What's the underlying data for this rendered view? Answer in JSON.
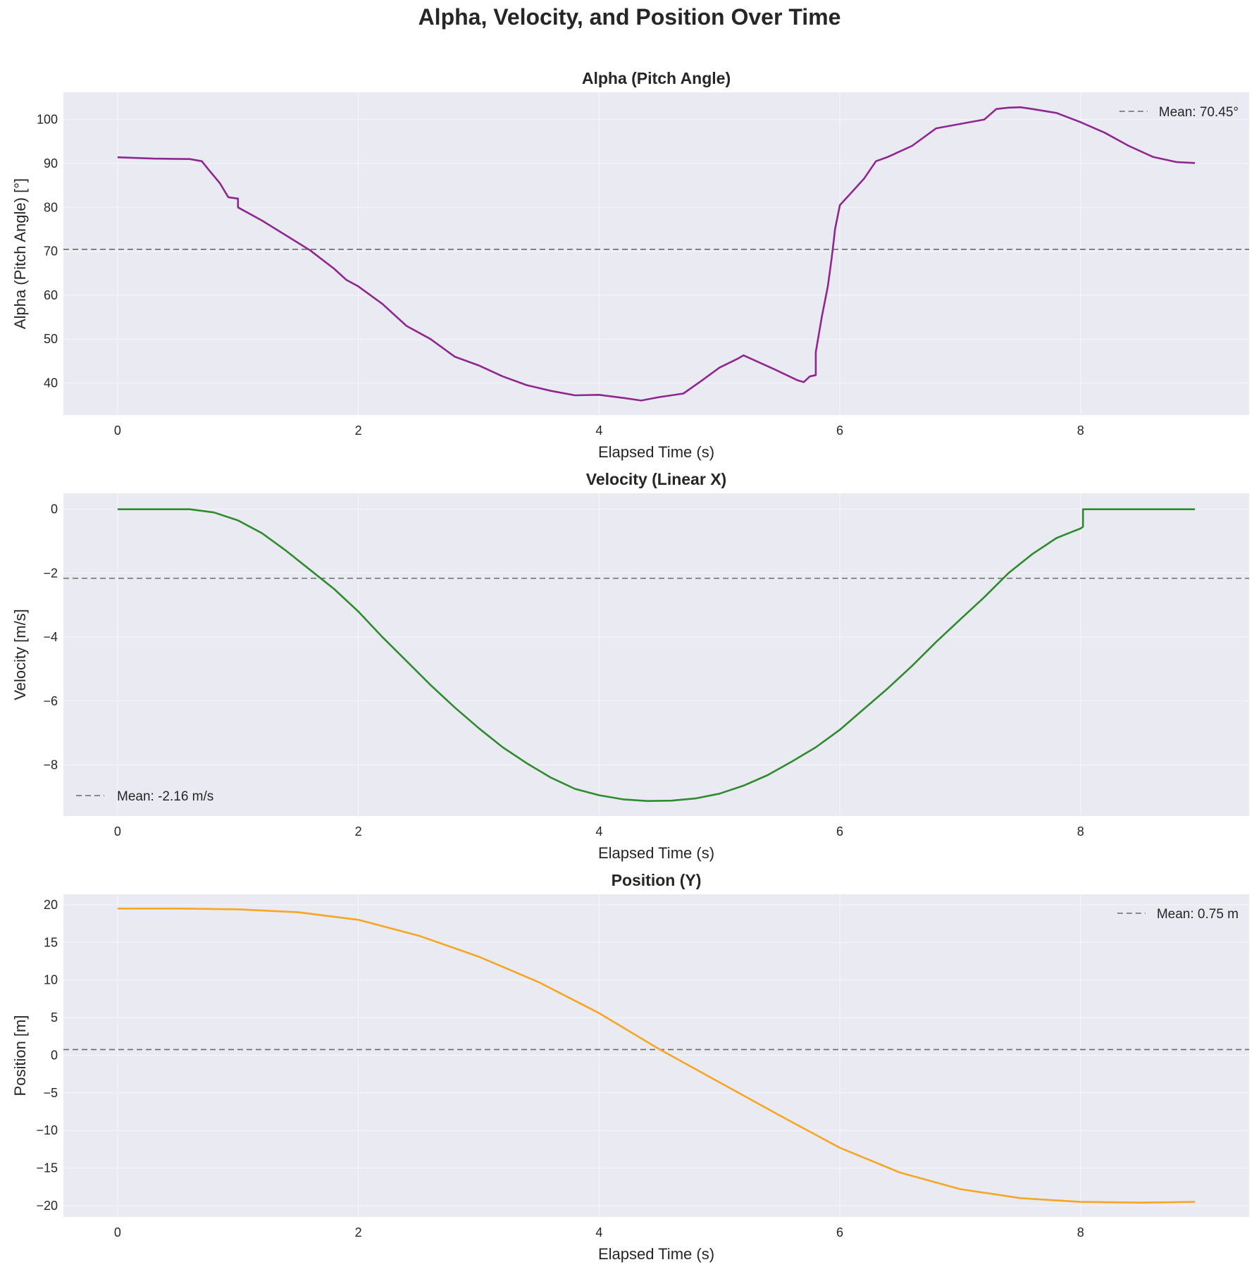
{
  "figure": {
    "title": "Alpha, Velocity, and Position Over Time"
  },
  "chart_data": [
    {
      "type": "line",
      "title": "Alpha (Pitch Angle)",
      "xlabel": "Elapsed Time (s)",
      "ylabel": "Alpha (Pitch Angle) [°]",
      "xlim": [
        -0.45,
        9.4
      ],
      "ylim": [
        32.7,
        106.2
      ],
      "xticks": [
        0,
        2,
        4,
        6,
        8
      ],
      "yticks": [
        40,
        50,
        60,
        70,
        80,
        90,
        100
      ],
      "grid": true,
      "legend_position": "upper right",
      "color": "#8e2790",
      "mean": {
        "value": 70.45,
        "label": "Mean: 70.45°"
      },
      "series": [
        {
          "x": [
            0,
            0.3,
            0.6,
            0.7,
            0.75,
            0.85,
            0.92,
            1.0,
            1.0,
            1.2,
            1.4,
            1.6,
            1.8,
            1.9,
            2.0,
            2.2,
            2.4,
            2.6,
            2.8,
            3.0,
            3.2,
            3.4,
            3.6,
            3.8,
            4.0,
            4.2,
            4.35,
            4.5,
            4.7,
            4.85,
            5.0,
            5.15,
            5.2,
            5.45,
            5.65,
            5.7,
            5.75,
            5.8,
            5.8,
            5.85,
            5.9,
            5.93,
            5.95,
            5.96,
            6.0,
            6.1,
            6.2,
            6.3,
            6.4,
            6.6,
            6.8,
            7.0,
            7.2,
            7.3,
            7.4,
            7.5,
            7.6,
            7.8,
            8.0,
            8.2,
            8.4,
            8.6,
            8.8,
            8.95
          ],
          "y": [
            91.4,
            91.1,
            91.0,
            90.5,
            88.8,
            85.5,
            82.3,
            82.0,
            80.0,
            77.0,
            73.6,
            70.2,
            66.0,
            63.5,
            62.0,
            58.0,
            53.0,
            50.0,
            46.0,
            44.0,
            41.5,
            39.5,
            38.2,
            37.2,
            37.3,
            36.6,
            36.0,
            36.8,
            37.6,
            40.5,
            43.5,
            45.5,
            46.3,
            43.2,
            40.6,
            40.2,
            41.5,
            41.8,
            47.0,
            55.0,
            62.0,
            68.0,
            72.5,
            75.0,
            80.5,
            83.5,
            86.5,
            90.5,
            91.5,
            94.0,
            98.0,
            99.0,
            100.0,
            102.4,
            102.7,
            102.8,
            102.4,
            101.5,
            99.4,
            97.0,
            94.0,
            91.5,
            90.3,
            90.1
          ]
        }
      ]
    },
    {
      "type": "line",
      "title": "Velocity (Linear X)",
      "xlabel": "Elapsed Time (s)",
      "ylabel": "Velocity [m/s]",
      "xlim": [
        -0.45,
        9.4
      ],
      "ylim": [
        -9.6,
        0.5
      ],
      "xticks": [
        0,
        2,
        4,
        6,
        8
      ],
      "yticks": [
        0,
        -2,
        -4,
        -6,
        -8
      ],
      "ytick_labels": [
        "0",
        "−2",
        "−4",
        "−6",
        "−8"
      ],
      "grid": true,
      "legend_position": "lower left",
      "color": "#2e8b2e",
      "mean": {
        "value": -2.16,
        "label": "Mean: -2.16 m/s"
      },
      "series": [
        {
          "x": [
            0,
            0.6,
            0.8,
            1.0,
            1.2,
            1.4,
            1.6,
            1.8,
            2.0,
            2.2,
            2.4,
            2.6,
            2.8,
            3.0,
            3.2,
            3.4,
            3.6,
            3.8,
            4.0,
            4.2,
            4.4,
            4.6,
            4.8,
            5.0,
            5.2,
            5.4,
            5.6,
            5.8,
            6.0,
            6.2,
            6.4,
            6.6,
            6.8,
            7.0,
            7.2,
            7.4,
            7.6,
            7.8,
            8.0,
            8.02,
            8.02,
            8.95
          ],
          "y": [
            0,
            0,
            -0.1,
            -0.35,
            -0.75,
            -1.3,
            -1.9,
            -2.5,
            -3.2,
            -4.0,
            -4.75,
            -5.5,
            -6.2,
            -6.85,
            -7.45,
            -7.95,
            -8.4,
            -8.75,
            -8.95,
            -9.08,
            -9.13,
            -9.12,
            -9.05,
            -8.9,
            -8.65,
            -8.32,
            -7.9,
            -7.45,
            -6.9,
            -6.25,
            -5.6,
            -4.9,
            -4.15,
            -3.45,
            -2.75,
            -2.0,
            -1.4,
            -0.9,
            -0.6,
            -0.55,
            0,
            0
          ]
        }
      ]
    },
    {
      "type": "line",
      "title": "Position (Y)",
      "xlabel": "Elapsed Time (s)",
      "ylabel": "Position [m]",
      "xlim": [
        -0.45,
        9.4
      ],
      "ylim": [
        -21.5,
        21.4
      ],
      "xticks": [
        0,
        2,
        4,
        6,
        8
      ],
      "yticks": [
        20,
        15,
        10,
        5,
        0,
        -5,
        -10,
        -15,
        -20
      ],
      "ytick_labels": [
        "20",
        "15",
        "10",
        "5",
        "0",
        "−5",
        "−10",
        "−15",
        "−20"
      ],
      "grid": true,
      "legend_position": "upper right",
      "color": "#f5a623",
      "mean": {
        "value": 0.75,
        "label": "Mean: 0.75 m"
      },
      "series": [
        {
          "x": [
            0,
            0.5,
            1.0,
            1.5,
            2.0,
            2.5,
            3.0,
            3.5,
            4.0,
            4.5,
            5.0,
            5.5,
            6.0,
            6.5,
            7.0,
            7.5,
            8.0,
            8.5,
            8.95
          ],
          "y": [
            19.5,
            19.5,
            19.4,
            19.0,
            18.0,
            15.9,
            13.1,
            9.7,
            5.6,
            0.8,
            -3.6,
            -8.0,
            -12.3,
            -15.6,
            -17.8,
            -19.0,
            -19.5,
            -19.6,
            -19.5
          ]
        }
      ]
    }
  ]
}
